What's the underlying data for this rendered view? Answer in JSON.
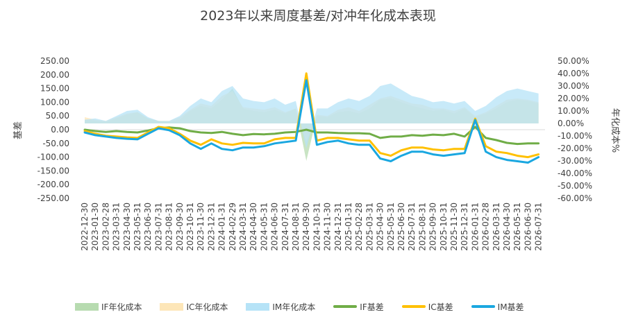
{
  "chart_data": {
    "type": "line",
    "title": "2023年以来周度基差/对冲年化成本表现",
    "ylabel": "基差",
    "y2label": "年化成本%",
    "ylim": [
      -250,
      250
    ],
    "y2lim": [
      -60,
      50
    ],
    "yticks": [
      "250.00",
      "200.00",
      "150.00",
      "100.00",
      "50.00",
      "0.00",
      "-50.00",
      "-100.00",
      "-150.00",
      "-200.00",
      "-250.00"
    ],
    "y2ticks": [
      "50.00%",
      "40.00%",
      "30.00%",
      "20.00%",
      "10.00%",
      "0.00%",
      "-10.00%",
      "-20.00%",
      "-30.00%",
      "-40.00%",
      "-50.00%",
      "-60.00%"
    ],
    "xtick_labels": [
      "2022-12-30",
      "2023-01-30",
      "2023-02-28",
      "2023-03-31",
      "2023-04-30",
      "2023-05-31",
      "2023-06-30",
      "2023-07-31",
      "2023-08-31",
      "2023-09-30",
      "2023-10-31",
      "2023-11-30",
      "2023-12-31",
      "2024-01-31",
      "2024-02-29",
      "2024-03-31",
      "2024-04-30",
      "2024-05-31",
      "2024-06-30",
      "2024-07-31",
      "2024-08-31",
      "2024-09-30",
      "2024-10-31",
      "2024-11-30",
      "2024-12-31",
      "2025-01-31",
      "2025-02-28",
      "2025-03-31",
      "2025-04-30",
      "2025-05-31",
      "2025-06-30",
      "2025-07-31",
      "2025-08-31",
      "2025-09-30",
      "2025-10-31",
      "2025-11-30",
      "2025-12-31",
      "2026-01-31",
      "2026-02-28",
      "2026-03-31",
      "2026-04-30",
      "2026-05-31",
      "2026-06-30",
      "2026-07-31"
    ],
    "series_meta": [
      {
        "name": "IF年化成本",
        "kind": "area",
        "axis": "right",
        "color": "#b7dbb0"
      },
      {
        "name": "IC年化成本",
        "kind": "area",
        "axis": "right",
        "color": "#fde6b8"
      },
      {
        "name": "IM年化成本",
        "kind": "area",
        "axis": "right",
        "color": "#b6e3f7"
      },
      {
        "name": "IF基差",
        "kind": "line",
        "axis": "left",
        "color": "#70ad47"
      },
      {
        "name": "IC基差",
        "kind": "line",
        "axis": "left",
        "color": "#ffc000"
      },
      {
        "name": "IM基差",
        "kind": "line",
        "axis": "left",
        "color": "#1aa7e0"
      }
    ],
    "months": [
      0,
      1,
      2,
      3,
      4,
      5,
      6,
      7,
      8,
      9,
      10,
      11,
      12,
      13,
      14,
      15,
      16,
      17,
      18,
      19,
      20,
      21,
      22,
      23,
      24,
      25,
      26,
      27,
      28,
      29,
      30,
      31,
      32,
      33,
      34,
      35,
      36,
      37,
      38,
      39,
      40,
      41,
      42,
      43
    ],
    "series_values": [
      [
        3,
        2,
        1,
        4,
        7,
        9,
        4,
        2,
        1,
        3,
        10,
        14,
        12,
        19,
        28,
        12,
        10,
        9,
        11,
        8,
        12,
        -30,
        6,
        5,
        9,
        10,
        8,
        12,
        19,
        20,
        17,
        14,
        12,
        10,
        11,
        8,
        12,
        5,
        8,
        12,
        17,
        19,
        18,
        16
      ],
      [
        5,
        3,
        2,
        5,
        8,
        9,
        4,
        2,
        2,
        5,
        11,
        16,
        14,
        22,
        26,
        13,
        12,
        11,
        13,
        9,
        12,
        -15,
        7,
        6,
        11,
        13,
        10,
        15,
        20,
        22,
        19,
        16,
        15,
        12,
        12,
        10,
        13,
        6,
        9,
        14,
        19,
        20,
        19,
        17
      ],
      [
        3,
        4,
        2,
        6,
        10,
        11,
        5,
        2,
        2,
        6,
        14,
        20,
        17,
        26,
        30,
        20,
        18,
        17,
        20,
        15,
        18,
        -20,
        12,
        12,
        17,
        20,
        18,
        22,
        30,
        32,
        27,
        22,
        20,
        17,
        18,
        16,
        18,
        10,
        14,
        21,
        26,
        28,
        26,
        24
      ],
      [
        0,
        -5,
        -8,
        -5,
        -8,
        -10,
        -3,
        5,
        8,
        5,
        -5,
        -10,
        -12,
        -8,
        -15,
        -20,
        -16,
        -17,
        -15,
        -10,
        -8,
        0,
        -10,
        -10,
        -12,
        -13,
        -13,
        -15,
        -30,
        -25,
        -25,
        -20,
        -22,
        -18,
        -20,
        -15,
        -25,
        10,
        -30,
        -38,
        -48,
        -52,
        -50,
        -50
      ],
      [
        -5,
        -15,
        -22,
        -25,
        -28,
        -30,
        -10,
        10,
        5,
        -15,
        -40,
        -55,
        -35,
        -50,
        -55,
        -48,
        -50,
        -50,
        -35,
        -30,
        -30,
        205,
        -40,
        -30,
        -30,
        -35,
        -40,
        -40,
        -85,
        -95,
        -75,
        -65,
        -65,
        -72,
        -75,
        -70,
        -70,
        40,
        -60,
        -80,
        -85,
        -95,
        -100,
        -90
      ],
      [
        -10,
        -20,
        -25,
        -30,
        -33,
        -35,
        -15,
        5,
        -2,
        -20,
        -50,
        -70,
        -50,
        -70,
        -75,
        -65,
        -65,
        -60,
        -50,
        -45,
        -40,
        180,
        -55,
        -45,
        -40,
        -50,
        -55,
        -55,
        -105,
        -115,
        -95,
        -80,
        -80,
        -90,
        -95,
        -90,
        -85,
        35,
        -80,
        -100,
        -110,
        -115,
        -120,
        -100
      ]
    ]
  }
}
